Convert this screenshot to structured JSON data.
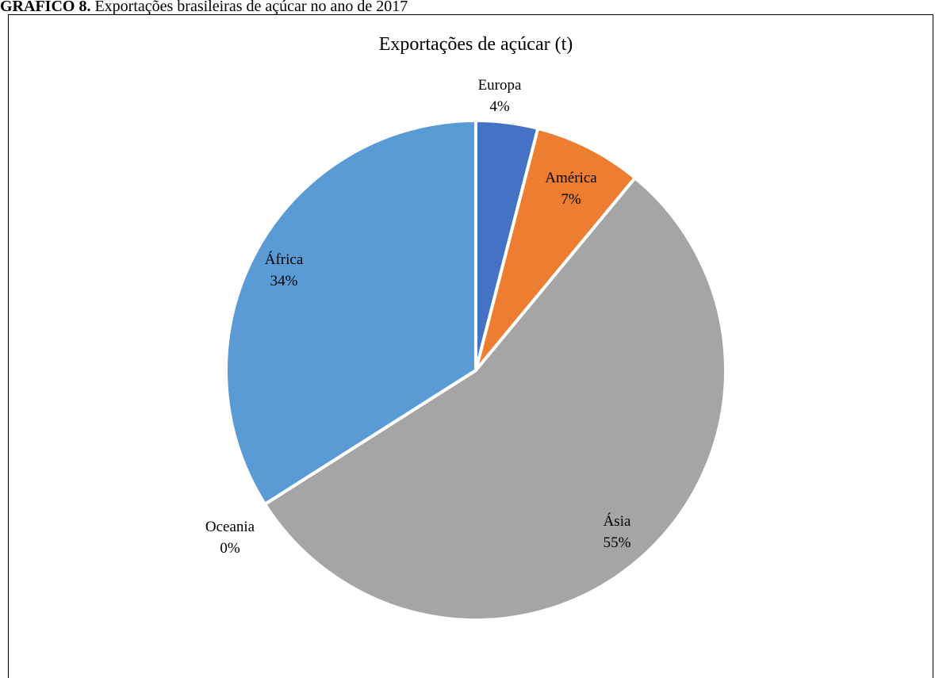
{
  "caption_label": "GRÁFICO 8.",
  "caption": "Exportações brasileiras de açúcar no ano de 2017",
  "chart_data": {
    "type": "pie",
    "title": "Exportações de açúcar (t)",
    "categories": [
      "Europa",
      "América",
      "Ásia",
      "Oceania",
      "África"
    ],
    "values": [
      4,
      7,
      55,
      0,
      34
    ],
    "value_labels": [
      "4%",
      "7%",
      "55%",
      "0%",
      "34%"
    ],
    "colors": [
      "#4472c4",
      "#ed7d31",
      "#a5a5a5",
      "#ffc000",
      "#5b9bd5"
    ]
  }
}
